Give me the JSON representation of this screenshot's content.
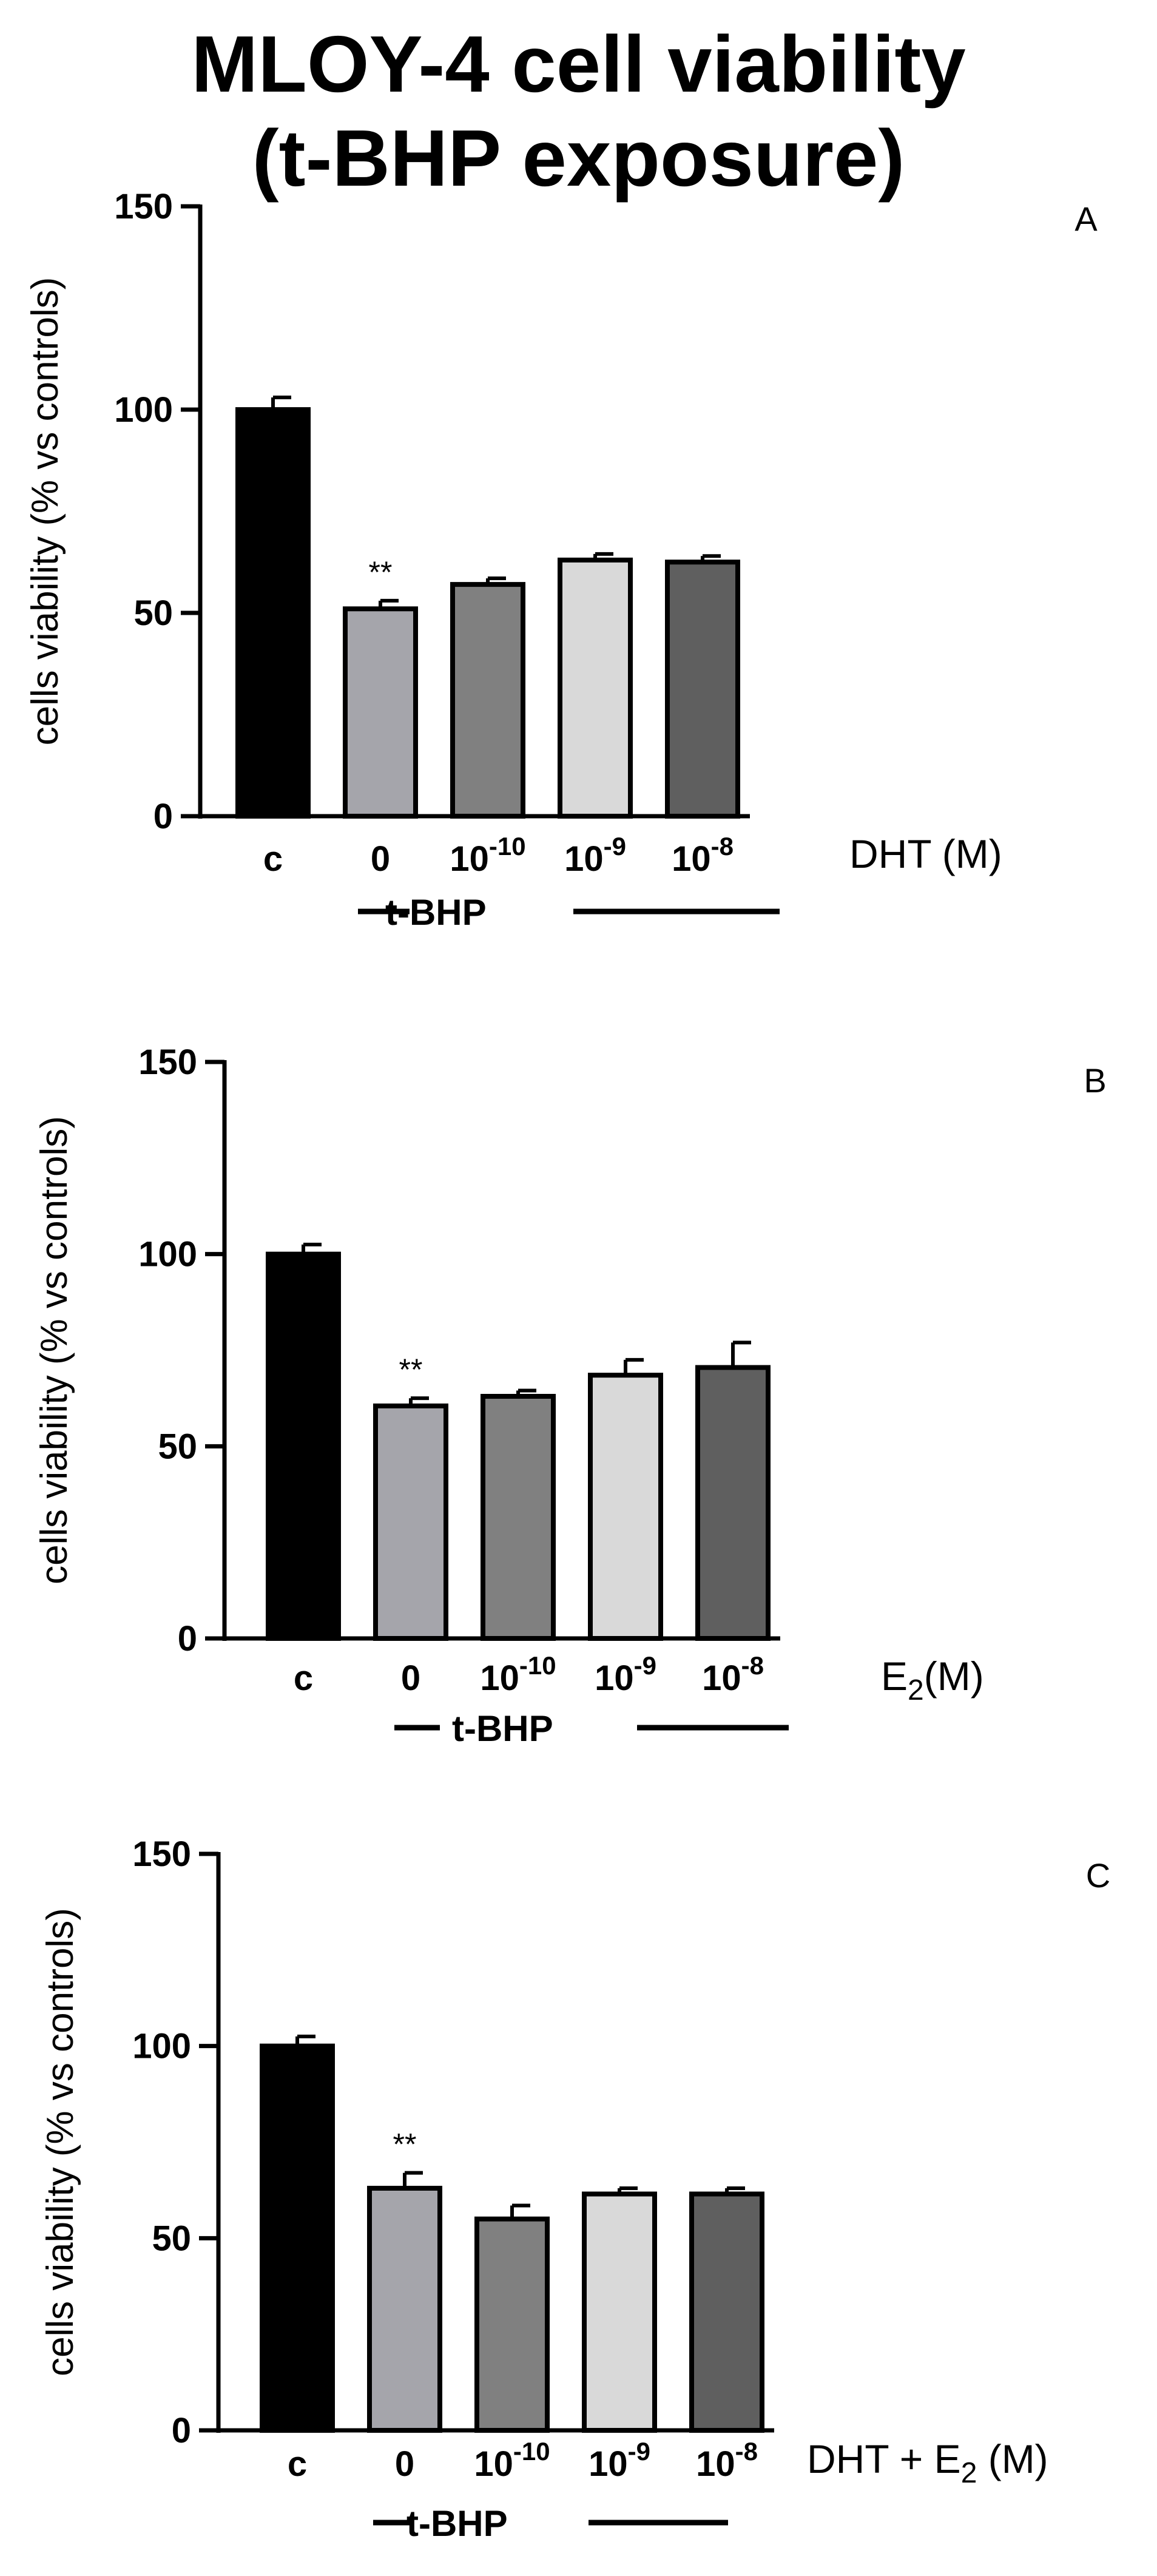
{
  "figure_title": [
    "MLOY-4 cell viability",
    "(t-BHP exposure)"
  ],
  "chart_data": [
    {
      "type": "bar",
      "panel_label": "A",
      "ylabel": "cells viability (% vs controls)",
      "ylim": [
        0,
        150
      ],
      "yticks": [
        "0",
        "50",
        "100",
        "150"
      ],
      "categories": [
        {
          "base": "c",
          "exp": ""
        },
        {
          "base": "0",
          "exp": ""
        },
        {
          "base": "10",
          "exp": "-10"
        },
        {
          "base": "10",
          "exp": "-9"
        },
        {
          "base": "10",
          "exp": "-8"
        }
      ],
      "values": [
        100,
        51,
        57,
        63,
        62.5
      ],
      "errors": [
        3,
        2,
        1.5,
        1.5,
        1.5
      ],
      "colors": [
        "#000000",
        "#a5a5ab",
        "#808080",
        "#d9d9d9",
        "#5f5f5f"
      ],
      "annotations": [
        {
          "category_index": 1,
          "text": "**"
        }
      ],
      "xlabel": {
        "base": "DHT (M)",
        "sub": "",
        "rest": ""
      },
      "treatment_label": "t-BHP"
    },
    {
      "type": "bar",
      "panel_label": "B",
      "ylabel": "cells viability (% vs controls)",
      "ylim": [
        0,
        150
      ],
      "yticks": [
        "0",
        "50",
        "100",
        "150"
      ],
      "categories": [
        {
          "base": "c",
          "exp": ""
        },
        {
          "base": "0",
          "exp": ""
        },
        {
          "base": "10",
          "exp": "-10"
        },
        {
          "base": "10",
          "exp": "-9"
        },
        {
          "base": "10",
          "exp": "-8"
        }
      ],
      "values": [
        100,
        60.5,
        63,
        68.5,
        70.5
      ],
      "errors": [
        2.5,
        2,
        1.5,
        4,
        6.5
      ],
      "colors": [
        "#000000",
        "#a5a5ab",
        "#808080",
        "#d9d9d9",
        "#5f5f5f"
      ],
      "annotations": [
        {
          "category_index": 1,
          "text": "**"
        }
      ],
      "xlabel": {
        "base": "E",
        "sub": "2",
        "rest": "(M)"
      },
      "treatment_label": "t-BHP"
    },
    {
      "type": "bar",
      "panel_label": "C",
      "ylabel": "cells viability (% vs controls)",
      "ylim": [
        0,
        150
      ],
      "yticks": [
        "0",
        "50",
        "100",
        "150"
      ],
      "categories": [
        {
          "base": "c",
          "exp": ""
        },
        {
          "base": "0",
          "exp": ""
        },
        {
          "base": "10",
          "exp": "-10"
        },
        {
          "base": "10",
          "exp": "-9"
        },
        {
          "base": "10",
          "exp": "-8"
        }
      ],
      "values": [
        100,
        63,
        55,
        61.5,
        61.5
      ],
      "errors": [
        2.5,
        4,
        3.5,
        1.5,
        1.5
      ],
      "colors": [
        "#000000",
        "#a5a5ab",
        "#808080",
        "#d9d9d9",
        "#5f5f5f"
      ],
      "annotations": [
        {
          "category_index": 1,
          "text": "**"
        }
      ],
      "xlabel": {
        "base": "DHT + E",
        "sub": "2",
        "rest": " (M)"
      },
      "treatment_label": "t-BHP"
    }
  ]
}
